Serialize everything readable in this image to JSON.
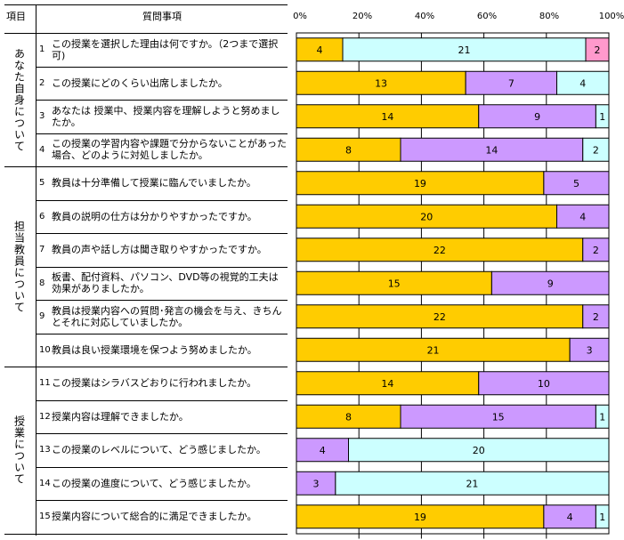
{
  "header": {
    "category": "項目",
    "question": "質問事項"
  },
  "categories": [
    {
      "label": "あなた自身について",
      "rows": [
        0,
        3
      ]
    },
    {
      "label": "担当教員について",
      "rows": [
        4,
        9
      ]
    },
    {
      "label": "授業について",
      "rows": [
        10,
        14
      ]
    }
  ],
  "questions": [
    {
      "n": "1",
      "text": "この授業を選択した理由は何ですか。（2つまで選択可)"
    },
    {
      "n": "2",
      "text": " この授業にどのくらい出席しましたか。"
    },
    {
      "n": "3",
      "text": "あなたは 授業中、授業内容を理解しようと努めましたか。"
    },
    {
      "n": "4",
      "text": "この授業の学習内容や課題で分からないことがあった場合、どのように対処しましたか。"
    },
    {
      "n": "5",
      "text": "教員は十分準備して授業に臨んでいましたか。"
    },
    {
      "n": "6",
      "text": "教員の説明の仕方は分かりやすかったですか。"
    },
    {
      "n": "7",
      "text": "教員の声や話し方は聞き取りやすかったですか。"
    },
    {
      "n": "8",
      "text": "板書、配付資料、パソコン、DVD等の視覚的工夫は効果がありましたか。"
    },
    {
      "n": "9",
      "text": "教員は授業内容への質問･発言の機会を与え、きちんとそれに対応していましたか。"
    },
    {
      "n": "10",
      "text": "教員は良い授業環境を保つよう努めましたか。"
    },
    {
      "n": "11",
      "text": "この授業はシラバスどおりに行われましたか。"
    },
    {
      "n": "12",
      "text": "授業内容は理解できましたか。"
    },
    {
      "n": "13",
      "text": "この授業のレベルについて、どう感じましたか。"
    },
    {
      "n": "14",
      "text": "この授業の進度について、どう感じましたか。"
    },
    {
      "n": "15",
      "text": "授業内容について総合的に満足できましたか。"
    }
  ],
  "colors": {
    "orange": "#FFCC00",
    "purple": "#CC99FF",
    "cyan": "#CCFFFF",
    "pink": "#FF99CC"
  },
  "chart_data": {
    "type": "bar",
    "orientation": "horizontal",
    "stacked": "percent",
    "xticks": [
      "0%",
      "20%",
      "40%",
      "60%",
      "80%",
      "100%"
    ],
    "xlim": [
      0,
      100
    ],
    "rows": [
      [
        [
          "orange",
          4
        ],
        [
          "cyan",
          21
        ],
        [
          "pink",
          2
        ]
      ],
      [
        [
          "orange",
          13
        ],
        [
          "purple",
          7
        ],
        [
          "cyan",
          4
        ]
      ],
      [
        [
          "orange",
          14
        ],
        [
          "purple",
          9
        ],
        [
          "cyan",
          1
        ]
      ],
      [
        [
          "orange",
          8
        ],
        [
          "purple",
          14
        ],
        [
          "cyan",
          2
        ]
      ],
      [
        [
          "orange",
          19
        ],
        [
          "purple",
          5
        ]
      ],
      [
        [
          "orange",
          20
        ],
        [
          "purple",
          4
        ]
      ],
      [
        [
          "orange",
          22
        ],
        [
          "purple",
          2
        ]
      ],
      [
        [
          "orange",
          15
        ],
        [
          "purple",
          9
        ]
      ],
      [
        [
          "orange",
          22
        ],
        [
          "purple",
          2
        ]
      ],
      [
        [
          "orange",
          21
        ],
        [
          "purple",
          3
        ]
      ],
      [
        [
          "orange",
          14
        ],
        [
          "purple",
          10
        ]
      ],
      [
        [
          "orange",
          8
        ],
        [
          "purple",
          15
        ],
        [
          "cyan",
          1
        ]
      ],
      [
        [
          "purple",
          4
        ],
        [
          "cyan",
          20
        ]
      ],
      [
        [
          "purple",
          3
        ],
        [
          "cyan",
          21
        ]
      ],
      [
        [
          "orange",
          19
        ],
        [
          "purple",
          4
        ],
        [
          "cyan",
          1
        ]
      ]
    ]
  }
}
